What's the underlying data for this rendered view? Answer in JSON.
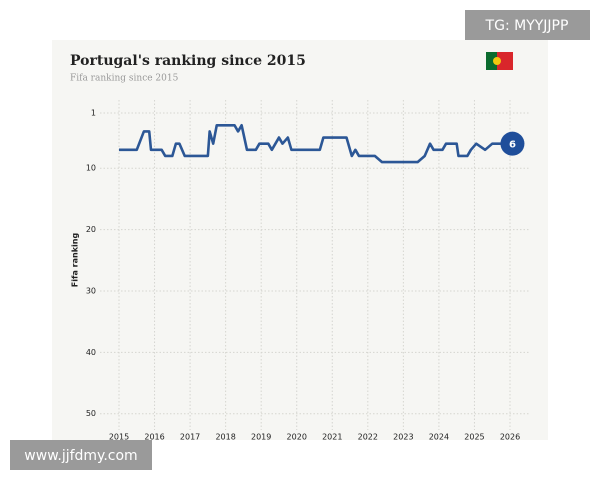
{
  "watermark_top": "TG: MYYJJPP",
  "watermark_bottom": "www.jjfdmy.com",
  "chart_data": {
    "type": "line",
    "title": "Portugal's ranking since 2015",
    "subtitle": "Fifa ranking since 2015",
    "y_label": "Fifa ranking",
    "color": "#2c5796",
    "x": [
      2015.0,
      2015.5,
      2015.7,
      2015.85,
      2015.9,
      2016.2,
      2016.3,
      2016.5,
      2016.6,
      2016.7,
      2016.85,
      2017.5,
      2017.55,
      2017.65,
      2017.75,
      2018.25,
      2018.35,
      2018.45,
      2018.6,
      2018.85,
      2018.95,
      2019.2,
      2019.3,
      2019.5,
      2019.6,
      2019.75,
      2019.85,
      2020.65,
      2020.75,
      2021.4,
      2021.55,
      2021.65,
      2021.75,
      2022.2,
      2022.4,
      2023.4,
      2023.6,
      2023.75,
      2023.85,
      2024.1,
      2024.2,
      2024.5,
      2024.55,
      2024.8,
      2024.9,
      2025.05,
      2025.3,
      2025.5,
      2025.9
    ],
    "values": [
      7,
      7,
      4,
      4,
      7,
      7,
      8,
      8,
      6,
      6,
      8,
      8,
      4,
      6,
      3,
      3,
      4,
      3,
      7,
      7,
      6,
      6,
      7,
      5,
      6,
      5,
      7,
      7,
      5,
      5,
      8,
      7,
      8,
      8,
      9,
      9,
      8,
      6,
      7,
      7,
      6,
      6,
      8,
      8,
      7,
      6,
      7,
      6,
      6
    ],
    "xlim": [
      2015,
      2026
    ],
    "xticks": [
      2015,
      2016,
      2017,
      2018,
      2019,
      2020,
      2021,
      2022,
      2023,
      2024,
      2025,
      2026
    ],
    "ylim": [
      1,
      52
    ],
    "yticks": [
      1,
      10,
      20,
      30,
      40,
      50
    ],
    "y_reversed": true,
    "grid": true
  }
}
